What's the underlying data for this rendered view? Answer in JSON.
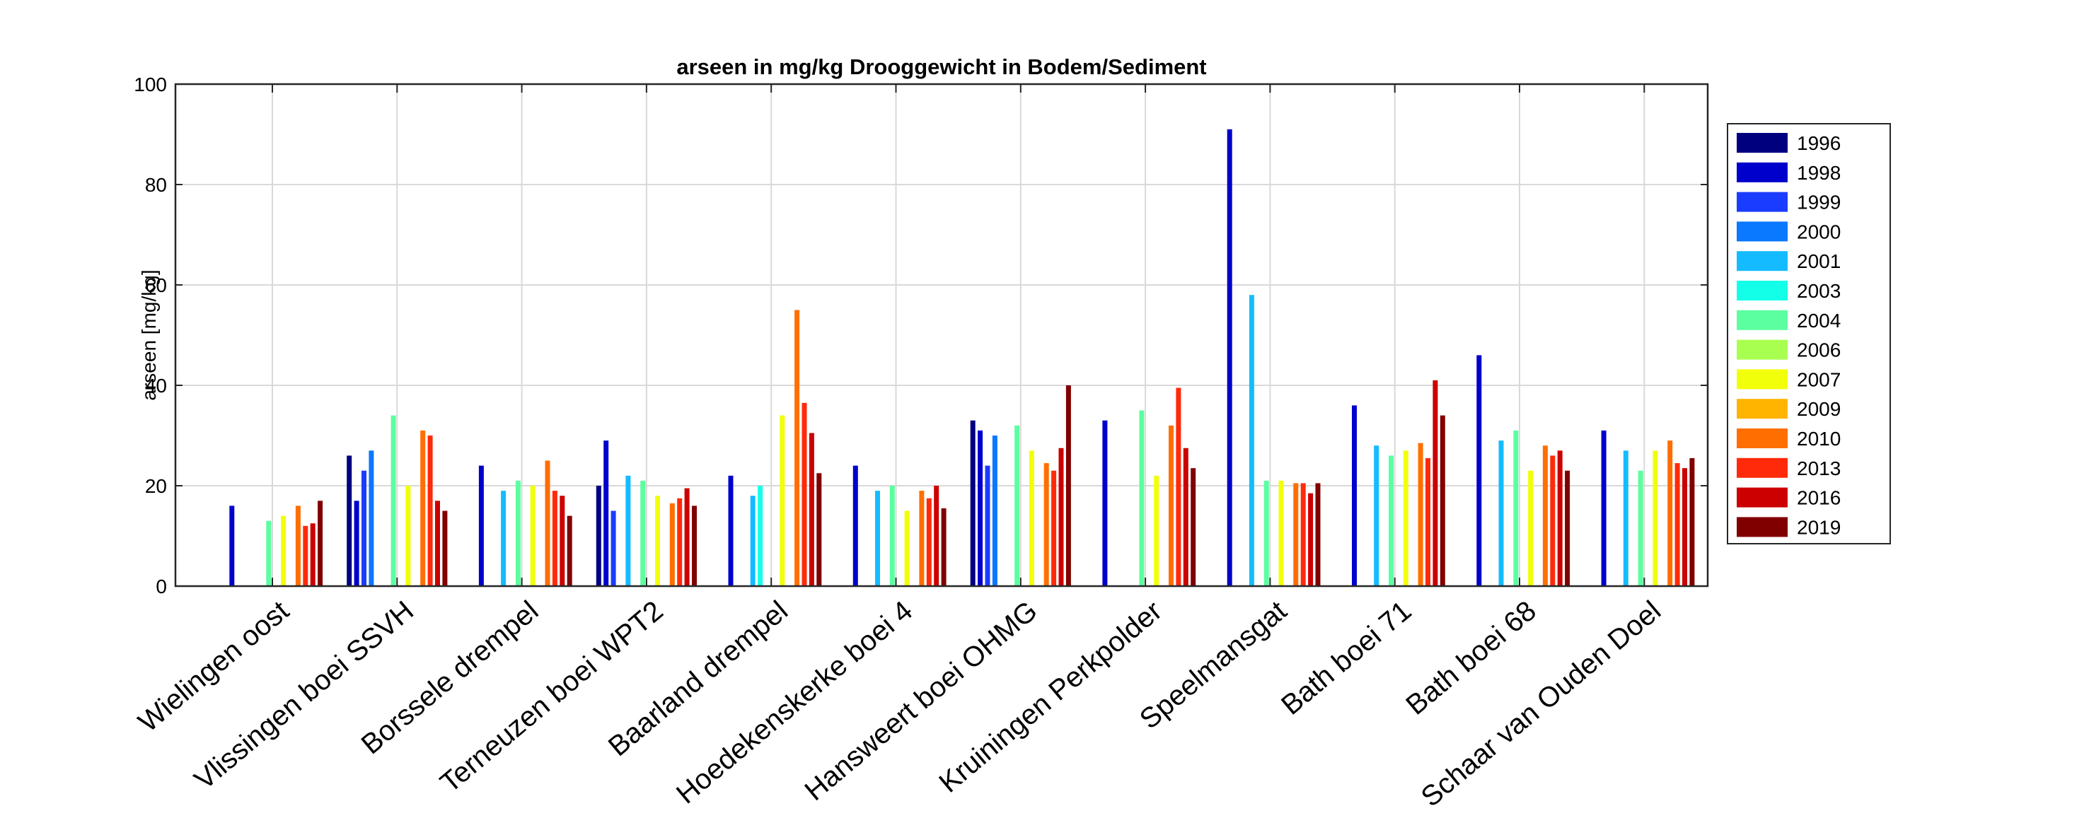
{
  "chart_data": {
    "type": "bar",
    "title": "arseen in mg/kg Drooggewicht in Bodem/Sediment",
    "xlabel": "",
    "ylabel": "arseen [mg/kg]",
    "ylim": [
      0,
      100
    ],
    "yticks": [
      0,
      20,
      40,
      60,
      80,
      100
    ],
    "grid": true,
    "legend_position": "right",
    "categories": [
      "Wielingen oost",
      "Vlissingen boei SSVH",
      "Borssele drempel",
      "Terneuzen boei WPT2",
      "Baarland drempel",
      "Hoedekenskerke boei 4",
      "Hansweert boei OHMG",
      "Kruiningen Perkpolder",
      "Speelmansgat",
      "Bath boei 71",
      "Bath boei 68",
      "Schaar van Ouden Doel"
    ],
    "series": [
      {
        "name": "1996",
        "color": "#00007f",
        "values": [
          null,
          26,
          null,
          20,
          null,
          null,
          33,
          null,
          null,
          null,
          null,
          null
        ]
      },
      {
        "name": "1998",
        "color": "#0000cc",
        "values": [
          16,
          17,
          24,
          29,
          22,
          24,
          31,
          33,
          91,
          36,
          46,
          31
        ]
      },
      {
        "name": "1999",
        "color": "#1a3cff",
        "values": [
          null,
          23,
          null,
          15,
          null,
          null,
          24,
          null,
          null,
          null,
          null,
          null
        ]
      },
      {
        "name": "2000",
        "color": "#0a78ff",
        "values": [
          null,
          27,
          null,
          null,
          null,
          null,
          30,
          null,
          null,
          null,
          null,
          null
        ]
      },
      {
        "name": "2001",
        "color": "#14bcff",
        "values": [
          null,
          null,
          19,
          22,
          18,
          19,
          null,
          null,
          58,
          28,
          29,
          27
        ]
      },
      {
        "name": "2003",
        "color": "#14ffe8",
        "values": [
          null,
          null,
          null,
          null,
          20,
          null,
          null,
          null,
          null,
          null,
          null,
          null
        ]
      },
      {
        "name": "2004",
        "color": "#5cffa0",
        "values": [
          13,
          34,
          21,
          21,
          null,
          20,
          32,
          35,
          21,
          26,
          31,
          23
        ]
      },
      {
        "name": "2006",
        "color": "#a8ff50",
        "values": [
          null,
          null,
          null,
          null,
          null,
          null,
          null,
          null,
          null,
          null,
          null,
          null
        ]
      },
      {
        "name": "2007",
        "color": "#f2ff0a",
        "values": [
          14,
          20,
          20,
          18,
          34,
          15,
          27,
          22,
          21,
          27,
          23,
          27
        ]
      },
      {
        "name": "2009",
        "color": "#ffb400",
        "values": [
          null,
          null,
          null,
          null,
          null,
          null,
          null,
          null,
          null,
          null,
          null,
          null
        ]
      },
      {
        "name": "2010",
        "color": "#ff6e00",
        "values": [
          16,
          31,
          25,
          16.5,
          55,
          19,
          24.5,
          32,
          20.5,
          28.5,
          28,
          29
        ]
      },
      {
        "name": "2013",
        "color": "#ff2a0a",
        "values": [
          12,
          30,
          19,
          17.5,
          36.5,
          17.5,
          23,
          39.5,
          20.5,
          25.5,
          26,
          24.5
        ]
      },
      {
        "name": "2016",
        "color": "#cc0000",
        "values": [
          12.5,
          17,
          18,
          19.5,
          30.5,
          20,
          27.5,
          27.5,
          18.5,
          41,
          27,
          23.5
        ]
      },
      {
        "name": "2019",
        "color": "#800000",
        "values": [
          17,
          15,
          14,
          16,
          22.5,
          15.5,
          40,
          23.5,
          20.5,
          34,
          23,
          25.5
        ]
      }
    ]
  }
}
